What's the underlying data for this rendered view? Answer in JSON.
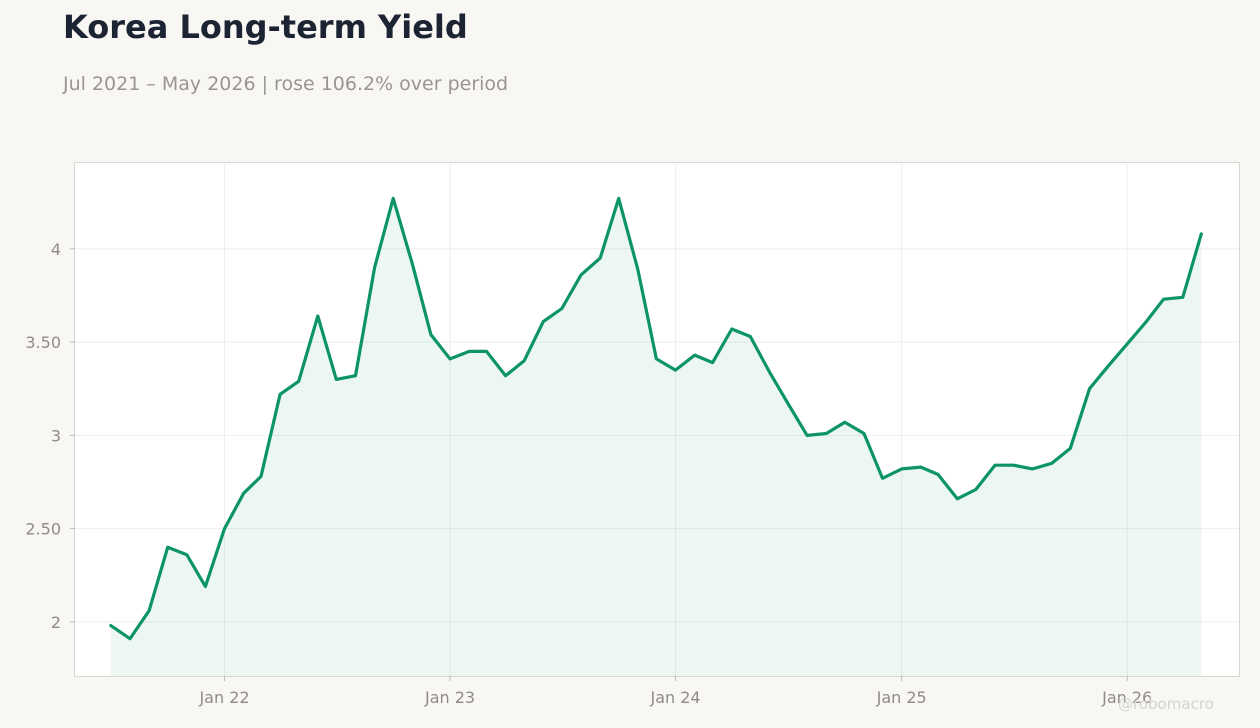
{
  "header": {
    "title": "Korea Long-term Yield",
    "subtitle": "Jul 2021 – May 2026 | rose 106.2% over period"
  },
  "watermark": "@robomacro",
  "colors": {
    "line": "#0c9466",
    "fill": "#0c9466",
    "background": "#f8f7f4",
    "plot_background": "#ffffff",
    "grid": "#eeeeee"
  },
  "chart_data": {
    "type": "area",
    "title": "Korea Long-term Yield",
    "xlabel": "",
    "ylabel": "",
    "grid": true,
    "ylim": [
      1.71,
      4.46
    ],
    "xlim": [
      "2021-05-04",
      "2026-07-01"
    ],
    "yticks": [
      2,
      2.5,
      3,
      3.5,
      4
    ],
    "ytick_labels": [
      "2",
      "2.50",
      "3",
      "3.50",
      "4"
    ],
    "xticks": [
      "2022-01-01",
      "2023-01-01",
      "2024-01-01",
      "2025-01-01",
      "2026-01-01"
    ],
    "xtick_labels": [
      "Jan 22",
      "Jan 23",
      "Jan 24",
      "Jan 25",
      "Jan 26"
    ],
    "series": [
      {
        "x": [
          "2021-07-01",
          "2021-08-01",
          "2021-09-01",
          "2021-10-01",
          "2021-11-01",
          "2021-12-01",
          "2022-01-01",
          "2022-02-01",
          "2022-03-01",
          "2022-04-01",
          "2022-05-01",
          "2022-06-01",
          "2022-07-01",
          "2022-08-01",
          "2022-09-01",
          "2022-10-01",
          "2022-11-01",
          "2022-12-01",
          "2023-01-01",
          "2023-02-01",
          "2023-03-01",
          "2023-04-01",
          "2023-05-01",
          "2023-06-01",
          "2023-07-01",
          "2023-08-01",
          "2023-09-01",
          "2023-10-01",
          "2023-11-01",
          "2023-12-01",
          "2024-01-01",
          "2024-02-01",
          "2024-03-01",
          "2024-04-01",
          "2024-05-01",
          "2024-06-01",
          "2024-07-01",
          "2024-08-01",
          "2024-09-01",
          "2024-10-01",
          "2024-11-01",
          "2024-12-01",
          "2025-01-01",
          "2025-02-01",
          "2025-03-01",
          "2025-04-01",
          "2025-05-01",
          "2025-06-01",
          "2025-07-01",
          "2025-08-01",
          "2025-09-01",
          "2025-10-01",
          "2025-11-01",
          "2025-12-01",
          "2026-01-01",
          "2026-02-01",
          "2026-03-01",
          "2026-04-01",
          "2026-05-01"
        ],
        "values": [
          1.98,
          1.91,
          2.06,
          2.4,
          2.36,
          2.19,
          2.5,
          2.69,
          2.78,
          3.22,
          3.29,
          3.64,
          3.3,
          3.32,
          3.9,
          4.27,
          3.92,
          3.54,
          3.41,
          3.45,
          3.45,
          3.32,
          3.4,
          3.61,
          3.68,
          3.86,
          3.95,
          4.27,
          3.89,
          3.41,
          3.35,
          3.43,
          3.39,
          3.57,
          3.53,
          3.34,
          3.17,
          3.0,
          3.01,
          3.07,
          3.01,
          2.77,
          2.82,
          2.83,
          2.79,
          2.66,
          2.71,
          2.84,
          2.84,
          2.82,
          2.85,
          2.93,
          3.25,
          3.37,
          3.49,
          3.61,
          3.73,
          3.74,
          4.08
        ]
      }
    ]
  }
}
